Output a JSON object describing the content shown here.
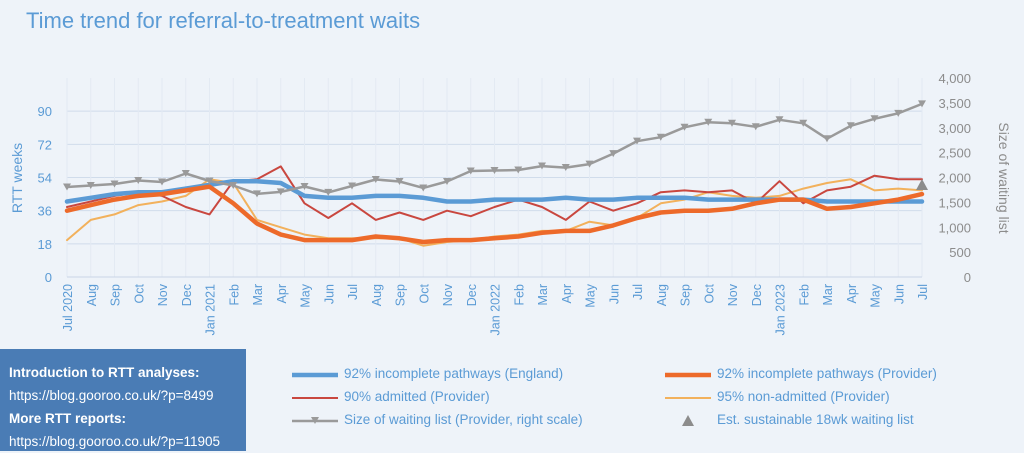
{
  "title": "Time trend for referral-to-treatment waits",
  "info_box": {
    "heading1": "Introduction to RTT analyses:",
    "link1": "https://blog.gooroo.co.uk/?p=8499",
    "heading2": "More RTT reports:",
    "link2": "https://blog.gooroo.co.uk/?p=11905"
  },
  "colors": {
    "england": "#5b9bd5",
    "provider_incomplete": "#ed6a2a",
    "admitted": "#c9473f",
    "non_admitted": "#f2b15c",
    "waiting_list": "#9a9a9a",
    "axis_text": "#5b9bd5",
    "right_axis_text": "#8c8c8c",
    "grid": "#d0dceb"
  },
  "chart_data": {
    "type": "line",
    "title": "Time trend for referral-to-treatment waits",
    "x": [
      "Jul 2020",
      "Aug",
      "Sep",
      "Oct",
      "Nov",
      "Dec",
      "Jan 2021",
      "Feb",
      "Mar",
      "Apr",
      "May",
      "Jun",
      "Jul",
      "Aug",
      "Sep",
      "Oct",
      "Nov",
      "Dec",
      "Jan 2022",
      "Feb",
      "Mar",
      "Apr",
      "May",
      "Jun",
      "Jul",
      "Aug",
      "Sep",
      "Oct",
      "Nov",
      "Dec",
      "Jan 2023",
      "Feb",
      "Mar",
      "Apr",
      "May",
      "Jun",
      "Jul"
    ],
    "ylabel": "RTT weeks",
    "y2label": "Size of waiting list",
    "ylim": [
      0,
      108
    ],
    "yticks": [
      "0",
      "18",
      "36",
      "54",
      "72",
      "90"
    ],
    "y2lim": [
      0,
      4000
    ],
    "y2ticks": [
      "0",
      "500",
      "1,000",
      "1,500",
      "2,000",
      "2,500",
      "3,000",
      "3,500",
      "4,000"
    ],
    "grid": true,
    "legend_position": "bottom",
    "series": [
      {
        "name": "92% incomplete pathways (England)",
        "axis": "left",
        "values": [
          41,
          43,
          45,
          46,
          46,
          48,
          50,
          52,
          52,
          51,
          44,
          43,
          43,
          44,
          44,
          43,
          41,
          41,
          42,
          42,
          42,
          43,
          42,
          42,
          43,
          43,
          43,
          42,
          42,
          42,
          42,
          42,
          41,
          41,
          41,
          41,
          41
        ]
      },
      {
        "name": "92% incomplete pathways (Provider)",
        "axis": "left",
        "values": [
          36,
          39,
          42,
          44,
          45,
          47,
          49,
          40,
          29,
          23,
          20,
          20,
          20,
          22,
          21,
          19,
          20,
          20,
          21,
          22,
          24,
          25,
          25,
          28,
          32,
          35,
          36,
          36,
          37,
          40,
          42,
          42,
          37,
          38,
          40,
          42,
          45
        ]
      },
      {
        "name": "90% admitted (Provider)",
        "axis": "left",
        "values": [
          38,
          41,
          44,
          46,
          44,
          38,
          34,
          52,
          53,
          60,
          40,
          32,
          40,
          31,
          35,
          31,
          36,
          33,
          38,
          42,
          38,
          31,
          41,
          36,
          40,
          46,
          47,
          46,
          47,
          40,
          52,
          40,
          47,
          49,
          55,
          53,
          53
        ]
      },
      {
        "name": "95% non-admitted (Provider)",
        "axis": "left",
        "values": [
          20,
          31,
          34,
          39,
          41,
          44,
          53,
          51,
          31,
          27,
          23,
          21,
          21,
          21,
          21,
          17,
          19,
          20,
          22,
          23,
          25,
          25,
          30,
          28,
          32,
          40,
          42,
          46,
          44,
          43,
          44,
          48,
          51,
          53,
          47,
          48,
          47
        ]
      },
      {
        "name": "Size of waiting list (Provider, right scale)",
        "axis": "right",
        "values": [
          1810,
          1840,
          1870,
          1940,
          1910,
          2080,
          1930,
          1840,
          1670,
          1710,
          1820,
          1700,
          1830,
          1960,
          1920,
          1790,
          1920,
          2130,
          2140,
          2150,
          2230,
          2200,
          2270,
          2480,
          2730,
          2810,
          3010,
          3110,
          3090,
          3020,
          3160,
          3090,
          2780,
          3040,
          3180,
          3290,
          3480
        ]
      },
      {
        "name": "Est. sustainable 18wk waiting list",
        "axis": "right",
        "marker_only": true,
        "index": 36,
        "value": 1850
      }
    ]
  }
}
